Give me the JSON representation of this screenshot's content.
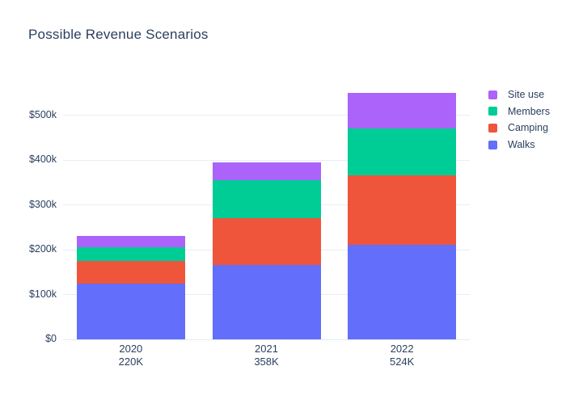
{
  "page": {
    "background": "#ffffff"
  },
  "colors": {
    "text": "#2a3f5f",
    "grid": "#e8edf6",
    "zeroline": "#e3e9f3"
  },
  "chart_data": {
    "type": "bar",
    "mode": "stacked",
    "title": "Possible Revenue Scenarios",
    "categories": [
      "2020",
      "2021",
      "2022"
    ],
    "category_sublabels": [
      "220K",
      "358K",
      "524K"
    ],
    "series": [
      {
        "name": "Walks",
        "color": "#636EFA",
        "values": [
          125,
          165,
          210
        ]
      },
      {
        "name": "Camping",
        "color": "#EF553B",
        "values": [
          50,
          105,
          155
        ]
      },
      {
        "name": "Members",
        "color": "#00CC96",
        "values": [
          30,
          85,
          105
        ]
      },
      {
        "name": "Site use",
        "color": "#AB63FA",
        "values": [
          25,
          40,
          80
        ]
      }
    ],
    "stack_totals_estimated": [
      230,
      395,
      550
    ],
    "values_unit": "thousand USD",
    "xlabel": "",
    "ylabel": "",
    "ytick_labels": [
      "$0",
      "$100k",
      "$200k",
      "$300k",
      "$400k",
      "$500k"
    ],
    "ytick_values": [
      0,
      100,
      200,
      300,
      400,
      500
    ],
    "ylim": [
      0,
      577
    ],
    "grid": true,
    "legend_position": "right-top",
    "legend_order_top_to_bottom": [
      "Site use",
      "Members",
      "Camping",
      "Walks"
    ]
  }
}
